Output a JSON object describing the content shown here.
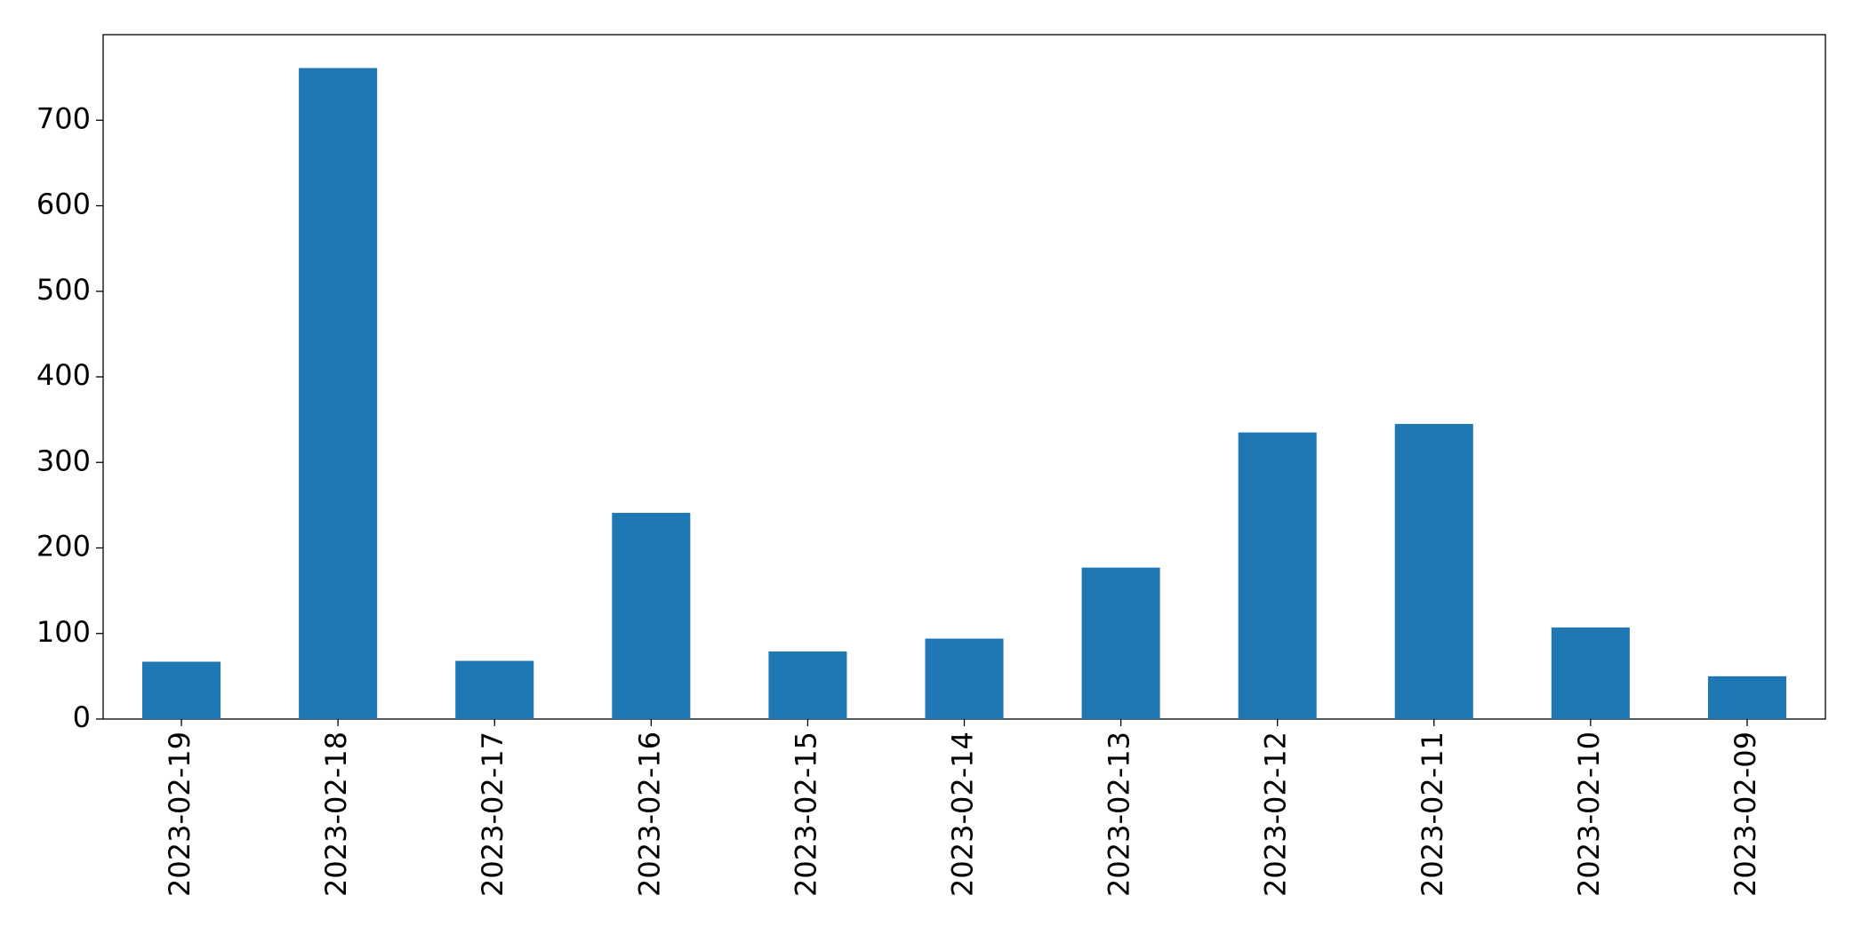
{
  "chart_data": {
    "type": "bar",
    "categories": [
      "2023-02-19",
      "2023-02-18",
      "2023-02-17",
      "2023-02-16",
      "2023-02-15",
      "2023-02-14",
      "2023-02-13",
      "2023-02-12",
      "2023-02-11",
      "2023-02-10",
      "2023-02-09"
    ],
    "values": [
      67,
      761,
      68,
      241,
      79,
      94,
      177,
      335,
      345,
      107,
      50
    ],
    "color": "#1f77b4",
    "ylim": [
      0,
      800
    ],
    "yticks": [
      0,
      100,
      200,
      300,
      400,
      500,
      600,
      700
    ],
    "grid": false
  }
}
